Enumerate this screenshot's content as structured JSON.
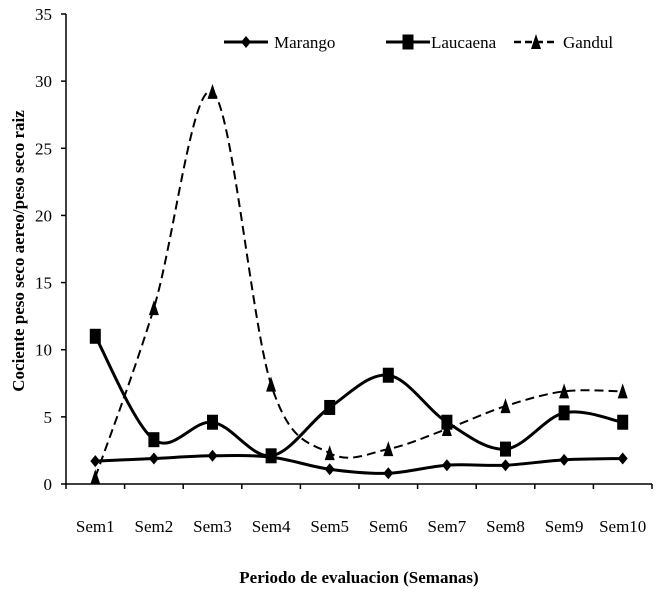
{
  "chart_data": {
    "type": "line",
    "xlabel": "Periodo de evaluacion (Semanas)",
    "ylabel": "Cociente peso seco aereo/peso seco raiz",
    "categories": [
      "Sem1",
      "Sem2",
      "Sem3",
      "Sem4",
      "Sem5",
      "Sem6",
      "Sem7",
      "Sem8",
      "Sem9",
      "Sem10"
    ],
    "ylim": [
      0,
      35
    ],
    "yticks": [
      0,
      5,
      10,
      15,
      20,
      25,
      30,
      35
    ],
    "grid": false,
    "legend_position": "top",
    "series": [
      {
        "name": "Marango",
        "marker": "diamond",
        "line": "solid",
        "color": "#000000",
        "values": [
          1.7,
          1.9,
          2.1,
          2.0,
          1.1,
          0.8,
          1.4,
          1.4,
          1.8,
          1.9
        ]
      },
      {
        "name": "Laucaena",
        "marker": "square",
        "line": "solid",
        "color": "#000000",
        "values": [
          11.0,
          3.3,
          4.6,
          2.1,
          5.7,
          8.1,
          4.6,
          2.6,
          5.3,
          4.6
        ]
      },
      {
        "name": "Gandul",
        "marker": "triangle",
        "line": "dashed",
        "color": "#000000",
        "values": [
          0.5,
          13.1,
          29.2,
          7.4,
          2.3,
          2.6,
          4.1,
          5.8,
          6.9,
          6.9
        ]
      }
    ]
  }
}
